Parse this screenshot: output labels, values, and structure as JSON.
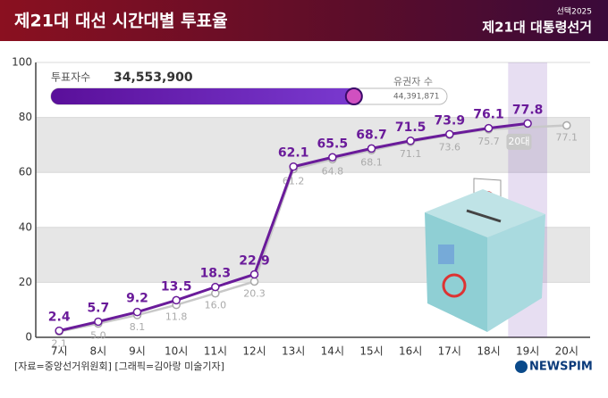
{
  "chart_data": {
    "type": "line",
    "title": "제21대 대선 시간대별 투표율",
    "brand_top": "선택2025",
    "brand_main": "제21대 대통령선거",
    "source": "[자료=중앙선거위원회] [그래픽=김아랑 미술기자]",
    "publisher": "NEWSPIM",
    "xlim": [
      6.4,
      20.6
    ],
    "xticks": [
      {
        "value": 7,
        "label": "7시"
      },
      {
        "value": 8,
        "label": "8시"
      },
      {
        "value": 9,
        "label": "9시"
      },
      {
        "value": 10,
        "label": "10시"
      },
      {
        "value": 11,
        "label": "11시"
      },
      {
        "value": 12,
        "label": "12시"
      },
      {
        "value": 13,
        "label": "13시"
      },
      {
        "value": 14,
        "label": "14시"
      },
      {
        "value": 15,
        "label": "15시"
      },
      {
        "value": 16,
        "label": "16시"
      },
      {
        "value": 17,
        "label": "17시"
      },
      {
        "value": 18,
        "label": "18시"
      },
      {
        "value": 19,
        "label": "19시"
      },
      {
        "value": 20,
        "label": "20시"
      }
    ],
    "ylim": [
      0,
      100
    ],
    "yticks": [
      0,
      20,
      40,
      60,
      80,
      100
    ],
    "series": [
      {
        "color": "#6a1b9a",
        "x": [
          7,
          8,
          9,
          10,
          11,
          12,
          13,
          14,
          15,
          16,
          17,
          18,
          19
        ],
        "values": [
          2.4,
          5.7,
          9.2,
          13.5,
          18.3,
          22.9,
          62.1,
          65.5,
          68.7,
          71.5,
          73.9,
          76.1,
          77.8
        ]
      },
      {
        "name": "20대",
        "color": "#c8c8c8",
        "x": [
          7,
          8,
          9,
          10,
          11,
          12,
          13,
          14,
          15,
          16,
          17,
          18,
          20
        ],
        "values": [
          2.1,
          5,
          8.1,
          11.8,
          16,
          20.3,
          61.2,
          64.8,
          68.1,
          71.1,
          73.6,
          75.7,
          77.1
        ],
        "value_labels": [
          "2.1",
          "5.0",
          "8.1",
          "11.8",
          "16.0",
          "20.3",
          "61.2",
          "64.8",
          "68.1",
          "71.1",
          "73.6",
          "75.7",
          "77.1"
        ]
      }
    ],
    "turnout_bar": {
      "label": "투표자수",
      "value": 34553900,
      "value_label": "34,553,900",
      "total_label": "유권자 수",
      "total": 44391871,
      "total_value_label": "44,391,871"
    }
  }
}
